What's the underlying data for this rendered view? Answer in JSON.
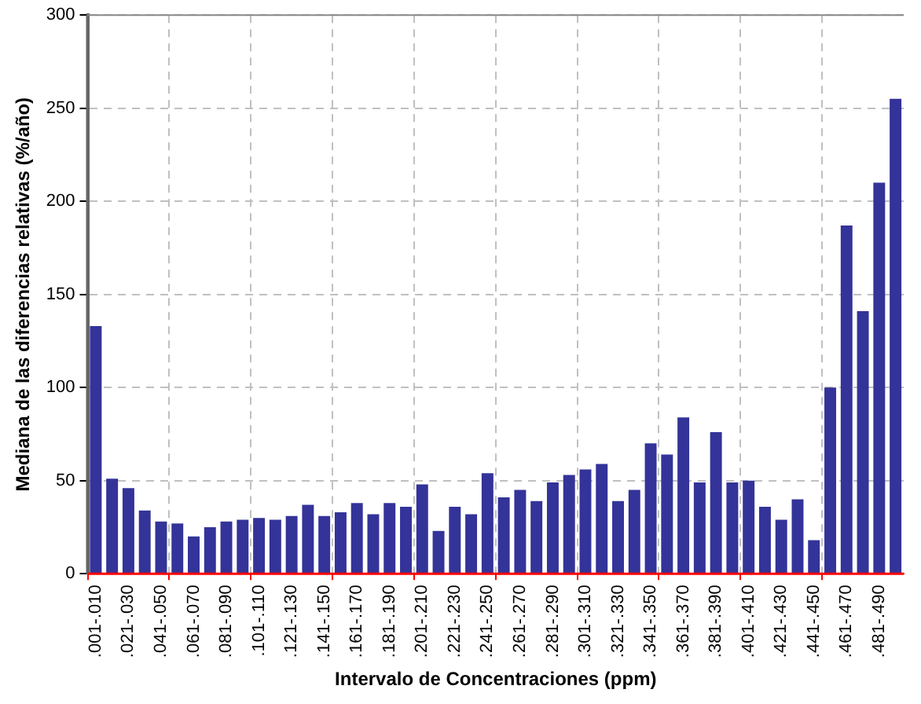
{
  "chart_data": {
    "type": "bar",
    "xlabel": "Intervalo de Concentraciones (ppm)",
    "ylabel": "Mediana de las diferencias relativas (%/año)",
    "categories": [
      ".001-.010",
      null,
      ".021-.030",
      null,
      ".041-.050",
      null,
      ".061-.070",
      null,
      ".081-.090",
      null,
      ".101-.110",
      null,
      ".121-.130",
      null,
      ".141-.150",
      null,
      ".161-.170",
      null,
      ".181-.190",
      null,
      ".201-.210",
      null,
      ".221-.230",
      null,
      ".241-.250",
      null,
      ".261-.270",
      null,
      ".281-.290",
      null,
      ".301-.310",
      null,
      ".321-.330",
      null,
      ".341-.350",
      null,
      ".361-.370",
      null,
      ".381-.390",
      null,
      ".401-.410",
      null,
      ".421-.430",
      null,
      ".441-.450",
      null,
      ".461-.470",
      null,
      ".481-.490",
      null
    ],
    "values": [
      133,
      51,
      46,
      34,
      28,
      27,
      20,
      25,
      28,
      29,
      30,
      29,
      31,
      37,
      31,
      33,
      38,
      32,
      38,
      36,
      48,
      23,
      36,
      32,
      54,
      41,
      45,
      39,
      49,
      53,
      56,
      59,
      39,
      45,
      70,
      64,
      84,
      49,
      76,
      49,
      50,
      36,
      29,
      40,
      18,
      100,
      187,
      141,
      210,
      255
    ],
    "color": "#333399",
    "ylim": [
      0,
      300
    ],
    "yticks": [
      0,
      50,
      100,
      150,
      200,
      250,
      300
    ],
    "grid": true
  }
}
